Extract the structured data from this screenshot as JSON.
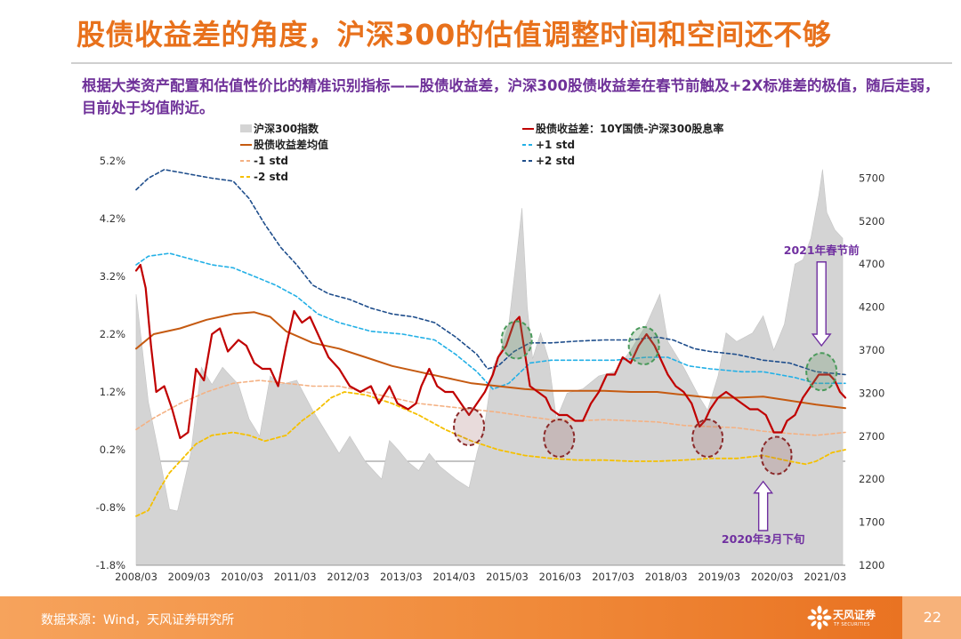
{
  "header": {
    "title": "股债收益差的角度，沪深300的估值调整时间和空间还不够",
    "subtitle": "根据大类资产配置和估值性价比的精准识别指标——股债收益差，沪深300股债收益差在春节前触及+2X标准差的极值，随后走弱，目前处于均值附近。"
  },
  "footer": {
    "source": "数据来源：Wind，天风证券研究所",
    "logo_text": "天风证券",
    "logo_subtext": "TF SECURITIES",
    "page_number": "22"
  },
  "colors": {
    "title": "#e8711c",
    "subtitle": "#6f3199",
    "index_area": "#d4d4d4",
    "spread": "#c00000",
    "mean": "#c55a11",
    "plus1": "#23b0e6",
    "plus2": "#1f4e8c",
    "minus1": "#f4b183",
    "minus2": "#f5c000",
    "annotation": "#7030a0",
    "circle_green": "#4a9a5b",
    "circle_red": "#8b2a2a"
  },
  "chart_data": {
    "type": "line",
    "title": "",
    "x_tick_labels": [
      "2008/03",
      "2009/03",
      "2010/03",
      "2011/03",
      "2012/03",
      "2013/03",
      "2014/03",
      "2015/03",
      "2016/03",
      "2017/03",
      "2018/03",
      "2019/03",
      "2020/03",
      "2021/03"
    ],
    "y_left_ticks": [
      "5.2%",
      "4.2%",
      "3.2%",
      "2.2%",
      "1.2%",
      "0.2%",
      "-0.8%",
      "-1.8%"
    ],
    "y_right_ticks": [
      "5700",
      "5200",
      "4700",
      "4200",
      "3700",
      "3200",
      "2700",
      "2200",
      "1700",
      "1200"
    ],
    "ylim_left": [
      -1.8,
      5.2
    ],
    "ylim_right": [
      1200,
      5900
    ],
    "legend": [
      {
        "key": "index",
        "label": "沪深300指数"
      },
      {
        "key": "spread",
        "label": "股债收益差：10Y国债-沪深300股息率"
      },
      {
        "key": "mean",
        "label": "股债收益差均值"
      },
      {
        "key": "plus1",
        "label": "+1 std"
      },
      {
        "key": "minus1",
        "label": "-1 std"
      },
      {
        "key": "plus2",
        "label": "+2 std"
      },
      {
        "key": "minus2",
        "label": "-2 std"
      }
    ],
    "series": [
      {
        "name": "沪深300指数",
        "axis": "right",
        "style": "area",
        "x": [
          2008.17,
          2008.4,
          2008.6,
          2008.8,
          2008.95,
          2009.2,
          2009.4,
          2009.6,
          2009.8,
          2010.1,
          2010.3,
          2010.5,
          2010.7,
          2010.9,
          2011.2,
          2011.5,
          2011.8,
          2012.0,
          2012.2,
          2012.5,
          2012.8,
          2012.95,
          2013.1,
          2013.3,
          2013.5,
          2013.7,
          2013.9,
          2014.2,
          2014.45,
          2014.6,
          2014.75,
          2014.9,
          2015.05,
          2015.2,
          2015.35,
          2015.45,
          2015.55,
          2015.65,
          2015.8,
          2015.95,
          2016.1,
          2016.3,
          2016.6,
          2016.9,
          2017.2,
          2017.5,
          2017.8,
          2018.05,
          2018.2,
          2018.5,
          2018.8,
          2018.95,
          2019.15,
          2019.3,
          2019.5,
          2019.8,
          2020.0,
          2020.2,
          2020.4,
          2020.6,
          2020.75,
          2020.9,
          2021.05,
          2021.12,
          2021.2,
          2021.35,
          2021.5
        ],
        "values": [
          4350,
          3100,
          2500,
          1850,
          1830,
          2500,
          3500,
          3300,
          3500,
          3300,
          2900,
          2700,
          3400,
          3300,
          3350,
          3000,
          2700,
          2500,
          2700,
          2400,
          2200,
          2650,
          2550,
          2400,
          2300,
          2500,
          2350,
          2200,
          2100,
          2500,
          2850,
          3500,
          3700,
          4000,
          4800,
          5350,
          4200,
          3600,
          3900,
          3600,
          2900,
          3200,
          3250,
          3400,
          3450,
          3700,
          4000,
          4350,
          3800,
          3500,
          3150,
          3000,
          3400,
          3900,
          3800,
          3900,
          4100,
          3700,
          4000,
          4700,
          4750,
          5000,
          5500,
          5800,
          5300,
          5100,
          5000
        ]
      },
      {
        "name": "股债收益差：10Y国债-沪深300股息率",
        "axis": "left",
        "style": "line",
        "x": [
          2008.17,
          2008.25,
          2008.35,
          2008.45,
          2008.55,
          2008.7,
          2008.85,
          2009.0,
          2009.15,
          2009.3,
          2009.45,
          2009.6,
          2009.75,
          2009.9,
          2010.1,
          2010.25,
          2010.4,
          2010.55,
          2010.7,
          2010.85,
          2011.0,
          2011.15,
          2011.3,
          2011.45,
          2011.6,
          2011.8,
          2012.0,
          2012.2,
          2012.4,
          2012.6,
          2012.75,
          2012.95,
          2013.1,
          2013.3,
          2013.45,
          2013.55,
          2013.7,
          2013.85,
          2014.0,
          2014.15,
          2014.3,
          2014.45,
          2014.6,
          2014.75,
          2014.9,
          2015.0,
          2015.15,
          2015.3,
          2015.4,
          2015.5,
          2015.6,
          2015.75,
          2015.9,
          2016.0,
          2016.15,
          2016.3,
          2016.45,
          2016.6,
          2016.75,
          2016.9,
          2017.05,
          2017.2,
          2017.35,
          2017.5,
          2017.65,
          2017.8,
          2017.95,
          2018.05,
          2018.2,
          2018.35,
          2018.5,
          2018.65,
          2018.8,
          2018.9,
          2019.0,
          2019.15,
          2019.3,
          2019.45,
          2019.6,
          2019.75,
          2019.9,
          2020.05,
          2020.2,
          2020.35,
          2020.45,
          2020.6,
          2020.75,
          2020.9,
          2021.05,
          2021.15,
          2021.25,
          2021.35,
          2021.45,
          2021.55
        ],
        "values": [
          3.3,
          3.4,
          3.0,
          2.0,
          1.2,
          1.3,
          0.9,
          0.4,
          0.5,
          1.6,
          1.4,
          2.2,
          2.3,
          1.9,
          2.1,
          2.0,
          1.7,
          1.6,
          1.6,
          1.3,
          2.0,
          2.6,
          2.4,
          2.5,
          2.2,
          1.8,
          1.6,
          1.3,
          1.2,
          1.3,
          1.0,
          1.3,
          1.0,
          0.9,
          1.0,
          1.3,
          1.6,
          1.3,
          1.2,
          1.2,
          1.0,
          0.8,
          1.0,
          1.2,
          1.5,
          1.8,
          2.0,
          2.4,
          2.5,
          1.9,
          1.3,
          1.2,
          1.1,
          0.9,
          0.8,
          0.8,
          0.7,
          0.7,
          1.0,
          1.2,
          1.5,
          1.5,
          1.8,
          1.7,
          2.0,
          2.2,
          2.0,
          1.8,
          1.5,
          1.3,
          1.2,
          1.0,
          0.6,
          0.7,
          0.9,
          1.1,
          1.2,
          1.1,
          1.0,
          0.9,
          0.9,
          0.8,
          0.5,
          0.5,
          0.7,
          0.8,
          1.1,
          1.3,
          1.5,
          1.5,
          1.5,
          1.4,
          1.2,
          1.1
        ]
      },
      {
        "name": "股债收益差均值",
        "axis": "left",
        "style": "line",
        "x": [
          2008.17,
          2008.5,
          2009.0,
          2009.5,
          2010.0,
          2010.4,
          2010.7,
          2011.0,
          2011.5,
          2012.0,
          2012.5,
          2013.0,
          2013.5,
          2014.0,
          2014.5,
          2015.0,
          2015.5,
          2016.0,
          2016.5,
          2017.0,
          2017.5,
          2018.0,
          2018.5,
          2019.0,
          2019.5,
          2020.0,
          2020.5,
          2021.0,
          2021.55
        ],
        "values": [
          1.95,
          2.2,
          2.3,
          2.45,
          2.55,
          2.58,
          2.5,
          2.25,
          2.05,
          1.95,
          1.8,
          1.65,
          1.55,
          1.45,
          1.35,
          1.3,
          1.25,
          1.22,
          1.22,
          1.22,
          1.2,
          1.2,
          1.15,
          1.1,
          1.1,
          1.12,
          1.05,
          0.98,
          0.92
        ]
      },
      {
        "name": "+1 std",
        "axis": "left",
        "style": "dashed",
        "x": [
          2008.17,
          2008.4,
          2008.8,
          2009.2,
          2009.6,
          2010.0,
          2010.4,
          2010.8,
          2011.2,
          2011.6,
          2012.0,
          2012.6,
          2013.2,
          2013.8,
          2014.2,
          2014.6,
          2014.9,
          2015.2,
          2015.6,
          2016.0,
          2016.6,
          2017.2,
          2017.8,
          2018.2,
          2018.6,
          2019.0,
          2019.6,
          2020.0,
          2020.6,
          2021.0,
          2021.55
        ],
        "values": [
          3.4,
          3.55,
          3.6,
          3.5,
          3.4,
          3.35,
          3.2,
          3.05,
          2.85,
          2.55,
          2.4,
          2.25,
          2.2,
          2.1,
          1.85,
          1.55,
          1.25,
          1.35,
          1.7,
          1.75,
          1.75,
          1.75,
          1.8,
          1.8,
          1.65,
          1.6,
          1.55,
          1.55,
          1.45,
          1.35,
          1.35
        ]
      },
      {
        "name": "+2 std",
        "axis": "left",
        "style": "dashed",
        "x": [
          2008.17,
          2008.4,
          2008.7,
          2009.0,
          2009.3,
          2009.6,
          2010.0,
          2010.3,
          2010.6,
          2010.9,
          2011.2,
          2011.5,
          2011.8,
          2012.2,
          2012.6,
          2013.0,
          2013.4,
          2013.8,
          2014.2,
          2014.6,
          2014.8,
          2015.0,
          2015.3,
          2015.6,
          2016.0,
          2016.5,
          2017.0,
          2017.5,
          2018.0,
          2018.3,
          2018.7,
          2019.0,
          2019.5,
          2020.0,
          2020.5,
          2021.0,
          2021.55
        ],
        "values": [
          4.7,
          4.9,
          5.05,
          5.0,
          4.95,
          4.9,
          4.85,
          4.55,
          4.1,
          3.7,
          3.4,
          3.05,
          2.9,
          2.8,
          2.65,
          2.55,
          2.5,
          2.4,
          2.15,
          1.85,
          1.6,
          1.65,
          1.9,
          2.05,
          2.05,
          2.08,
          2.1,
          2.1,
          2.15,
          2.1,
          1.95,
          1.9,
          1.85,
          1.75,
          1.7,
          1.55,
          1.5
        ]
      },
      {
        "name": "-1 std",
        "axis": "left",
        "style": "dashed",
        "x": [
          2008.17,
          2008.5,
          2009.0,
          2009.5,
          2010.0,
          2010.5,
          2011.0,
          2011.5,
          2012.0,
          2012.5,
          2013.0,
          2013.5,
          2014.0,
          2014.5,
          2015.0,
          2015.5,
          2016.0,
          2016.5,
          2017.0,
          2017.5,
          2018.0,
          2018.5,
          2019.0,
          2019.5,
          2020.0,
          2020.5,
          2021.0,
          2021.55
        ],
        "values": [
          0.55,
          0.75,
          1.0,
          1.2,
          1.35,
          1.4,
          1.35,
          1.3,
          1.3,
          1.2,
          1.1,
          1.0,
          0.95,
          0.9,
          0.85,
          0.78,
          0.72,
          0.7,
          0.72,
          0.7,
          0.68,
          0.62,
          0.6,
          0.58,
          0.52,
          0.48,
          0.45,
          0.5
        ]
      },
      {
        "name": "-2 std",
        "axis": "left",
        "style": "dashed",
        "x": [
          2008.17,
          2008.4,
          2008.6,
          2008.8,
          2009.0,
          2009.3,
          2009.6,
          2010.0,
          2010.3,
          2010.6,
          2011.0,
          2011.3,
          2011.6,
          2011.85,
          2012.1,
          2012.5,
          2013.0,
          2013.5,
          2014.0,
          2014.5,
          2015.0,
          2015.5,
          2016.0,
          2016.5,
          2017.0,
          2017.5,
          2018.0,
          2018.5,
          2019.0,
          2019.5,
          2020.0,
          2020.5,
          2020.8,
          2021.0,
          2021.3,
          2021.55
        ],
        "values": [
          -0.95,
          -0.85,
          -0.5,
          -0.2,
          0.0,
          0.3,
          0.45,
          0.5,
          0.45,
          0.35,
          0.45,
          0.7,
          0.9,
          1.1,
          1.2,
          1.15,
          1.0,
          0.8,
          0.55,
          0.35,
          0.2,
          0.1,
          0.05,
          0.02,
          0.02,
          0.0,
          0.0,
          0.02,
          0.05,
          0.05,
          0.1,
          0.0,
          -0.05,
          0.0,
          0.15,
          0.2
        ]
      }
    ],
    "circles": [
      {
        "x": 2015.35,
        "y": 2.1,
        "kind": "high"
      },
      {
        "x": 2017.75,
        "y": 2.0,
        "kind": "high"
      },
      {
        "x": 2021.1,
        "y": 1.55,
        "kind": "high"
      },
      {
        "x": 2014.45,
        "y": 0.6,
        "kind": "low"
      },
      {
        "x": 2016.15,
        "y": 0.4,
        "kind": "low"
      },
      {
        "x": 2018.95,
        "y": 0.4,
        "kind": "low"
      },
      {
        "x": 2020.25,
        "y": 0.1,
        "kind": "low"
      }
    ],
    "annotations": [
      {
        "text": "2021年春节前",
        "x": 2021.1,
        "y": 3.65,
        "arrow": "down",
        "arrow_from": 3.45,
        "arrow_to": 2.0
      },
      {
        "text": "2020年3月下旬",
        "x": 2020.0,
        "y": -1.35,
        "arrow": "up",
        "arrow_from": -1.2,
        "arrow_to": -0.35
      }
    ]
  }
}
